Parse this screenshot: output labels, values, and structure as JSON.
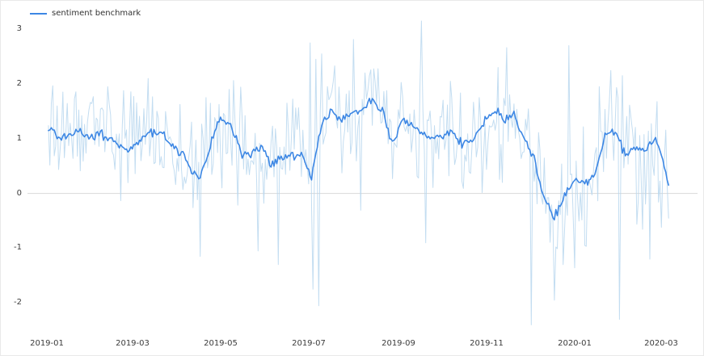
{
  "figure": {
    "background": "#ffffff",
    "border_color": "#e9e9e9"
  },
  "legend": {
    "label": "sentiment benchmark",
    "line_color": "#3d87e4"
  },
  "chart_data": {
    "type": "line",
    "title": "",
    "xlabel": "",
    "ylabel": "",
    "legend_position": "top-left",
    "grid": false,
    "zero_line": true,
    "zero_line_color": "#d8d8d8",
    "ylim": [
      -2.6,
      3.4
    ],
    "x_domain_days": [
      -13.5,
      450
    ],
    "x_epoch": "2019-01-01",
    "data_start": "2019-01-02",
    "data_end": "2020-03-06",
    "x_ticks": [
      {
        "day": 0,
        "label": "2019-01"
      },
      {
        "day": 59,
        "label": "2019-03"
      },
      {
        "day": 120,
        "label": "2019-05"
      },
      {
        "day": 181,
        "label": "2019-07"
      },
      {
        "day": 243,
        "label": "2019-09"
      },
      {
        "day": 304,
        "label": "2019-11"
      },
      {
        "day": 365,
        "label": "2020-01"
      },
      {
        "day": 425,
        "label": "2020-03"
      }
    ],
    "y_ticks": [
      {
        "value": -2,
        "label": "-2"
      },
      {
        "value": -1,
        "label": "-1"
      },
      {
        "value": 0,
        "label": "0"
      },
      {
        "value": 1,
        "label": "1"
      },
      {
        "value": 2,
        "label": "2"
      },
      {
        "value": 3,
        "label": "3"
      }
    ],
    "series": [
      {
        "name": "sentiment benchmark (daily)",
        "role": "raw",
        "color": "#b9d7ef",
        "opacity": 0.85,
        "width": 1
      },
      {
        "name": "sentiment benchmark (smoothed)",
        "role": "smoothed",
        "color": "#3d87e4",
        "opacity": 1,
        "width": 1.6
      }
    ],
    "smoothed_weekly": {
      "start_date": "2019-01-02",
      "interval_days": 7,
      "values": [
        1.2,
        1.0,
        1.05,
        1.15,
        1.0,
        1.1,
        1.0,
        0.9,
        0.8,
        0.95,
        1.15,
        1.1,
        0.9,
        0.8,
        0.45,
        0.3,
        0.85,
        1.4,
        1.25,
        0.75,
        0.7,
        0.85,
        0.55,
        0.65,
        0.7,
        0.7,
        0.3,
        1.3,
        1.5,
        1.3,
        1.5,
        1.55,
        1.7,
        1.5,
        0.9,
        1.35,
        1.25,
        1.1,
        1.0,
        1.05,
        1.1,
        0.9,
        1.0,
        1.3,
        1.5,
        1.35,
        1.45,
        1.0,
        0.65,
        -0.1,
        -0.45,
        -0.05,
        0.25,
        0.15,
        0.35,
        1.05,
        1.15,
        0.7,
        0.85,
        0.8,
        1.0,
        0.4,
        -0.7
      ]
    },
    "noise": {
      "seed": 20190102,
      "std": 0.55,
      "smooth_jitter": 0.04,
      "clip": [
        -2.45,
        3.18
      ]
    },
    "spikes": [
      {
        "date": "2019-01-04",
        "value": 1.65
      },
      {
        "date": "2019-02-12",
        "value": 1.95
      },
      {
        "date": "2019-03-12",
        "value": 2.1
      },
      {
        "date": "2019-04-17",
        "value": -1.15
      },
      {
        "date": "2019-04-21",
        "value": 1.75
      },
      {
        "date": "2019-05-27",
        "value": -1.05
      },
      {
        "date": "2019-06-10",
        "value": -1.3
      },
      {
        "date": "2019-06-16",
        "value": 1.65
      },
      {
        "date": "2019-07-02",
        "value": 2.75
      },
      {
        "date": "2019-07-04",
        "value": -1.75
      },
      {
        "date": "2019-07-06",
        "value": 2.45
      },
      {
        "date": "2019-07-08",
        "value": -2.05
      },
      {
        "date": "2019-07-10",
        "value": 2.55
      },
      {
        "date": "2019-08-09",
        "value": 2.2
      },
      {
        "date": "2019-09-17",
        "value": 3.15
      },
      {
        "date": "2019-09-20",
        "value": -0.9
      },
      {
        "date": "2019-10-07",
        "value": 2.05
      },
      {
        "date": "2019-11-09",
        "value": 2.3
      },
      {
        "date": "2019-12-02",
        "value": -2.4
      },
      {
        "date": "2019-12-18",
        "value": -1.95
      },
      {
        "date": "2019-12-24",
        "value": -1.3
      },
      {
        "date": "2019-12-28",
        "value": 2.7
      },
      {
        "date": "2020-01-08",
        "value": -0.95
      },
      {
        "date": "2020-01-18",
        "value": 1.95
      },
      {
        "date": "2020-02-01",
        "value": -2.3
      },
      {
        "date": "2020-02-03",
        "value": 2.15
      },
      {
        "date": "2020-02-22",
        "value": -1.2
      },
      {
        "date": "2020-03-06",
        "value": -0.45
      }
    ]
  }
}
